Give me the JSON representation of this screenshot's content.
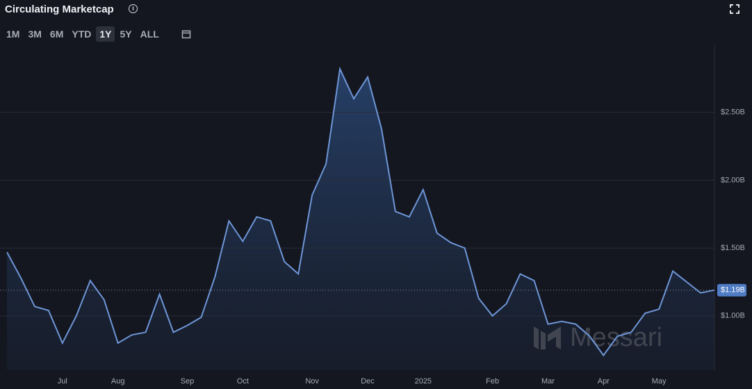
{
  "header": {
    "title": "Circulating Marketcap",
    "buttons": [
      "1M",
      "3M",
      "6M",
      "YTD",
      "1Y",
      "5Y",
      "ALL"
    ]
  },
  "watermark": "Messari",
  "chart_data": {
    "type": "area",
    "categories": [
      null,
      null,
      null,
      null,
      "Jul",
      null,
      null,
      null,
      "Aug",
      null,
      null,
      null,
      null,
      "Sep",
      null,
      null,
      null,
      "Oct",
      null,
      null,
      null,
      null,
      "Nov",
      null,
      null,
      null,
      "Dec",
      null,
      null,
      null,
      "2025",
      null,
      null,
      null,
      null,
      "Feb",
      null,
      null,
      null,
      "Mar",
      null,
      null,
      null,
      "Apr",
      null,
      null,
      null,
      "May",
      null,
      null,
      null,
      null
    ],
    "values": [
      1.47,
      1.28,
      1.07,
      1.04,
      0.8,
      1.0,
      1.26,
      1.12,
      0.8,
      0.86,
      0.88,
      1.16,
      0.88,
      0.93,
      0.99,
      1.29,
      1.7,
      1.55,
      1.73,
      1.7,
      1.4,
      1.31,
      1.89,
      2.12,
      2.82,
      2.6,
      2.76,
      2.38,
      1.77,
      1.73,
      1.93,
      1.61,
      1.54,
      1.5,
      1.13,
      1.0,
      1.09,
      1.31,
      1.26,
      0.94,
      0.96,
      0.94,
      0.85,
      0.71,
      0.85,
      0.88,
      1.02,
      1.05,
      1.33,
      1.25,
      1.17,
      1.19
    ],
    "value_labels": [
      null,
      null,
      null,
      null,
      null,
      null,
      null,
      null,
      null,
      null,
      null,
      null,
      null,
      null,
      null,
      null,
      null,
      null,
      null,
      null,
      null,
      null,
      null,
      null,
      null,
      null,
      null,
      null,
      null,
      null,
      null,
      null,
      null,
      null,
      null,
      null,
      null,
      null,
      null,
      null,
      null,
      null,
      null,
      null,
      null,
      null,
      null,
      null,
      null,
      null,
      null,
      "$1.19B"
    ],
    "color": "#6e96d8",
    "ylim": [
      0.6,
      3.0
    ],
    "yticks": [
      {
        "value": 1,
        "label": "$1.00B"
      },
      {
        "value": 1.5,
        "label": "$1.50B"
      },
      {
        "value": 2,
        "label": "$2.00B"
      },
      {
        "value": 2.5,
        "label": "$2.50B"
      }
    ],
    "grid": true
  }
}
